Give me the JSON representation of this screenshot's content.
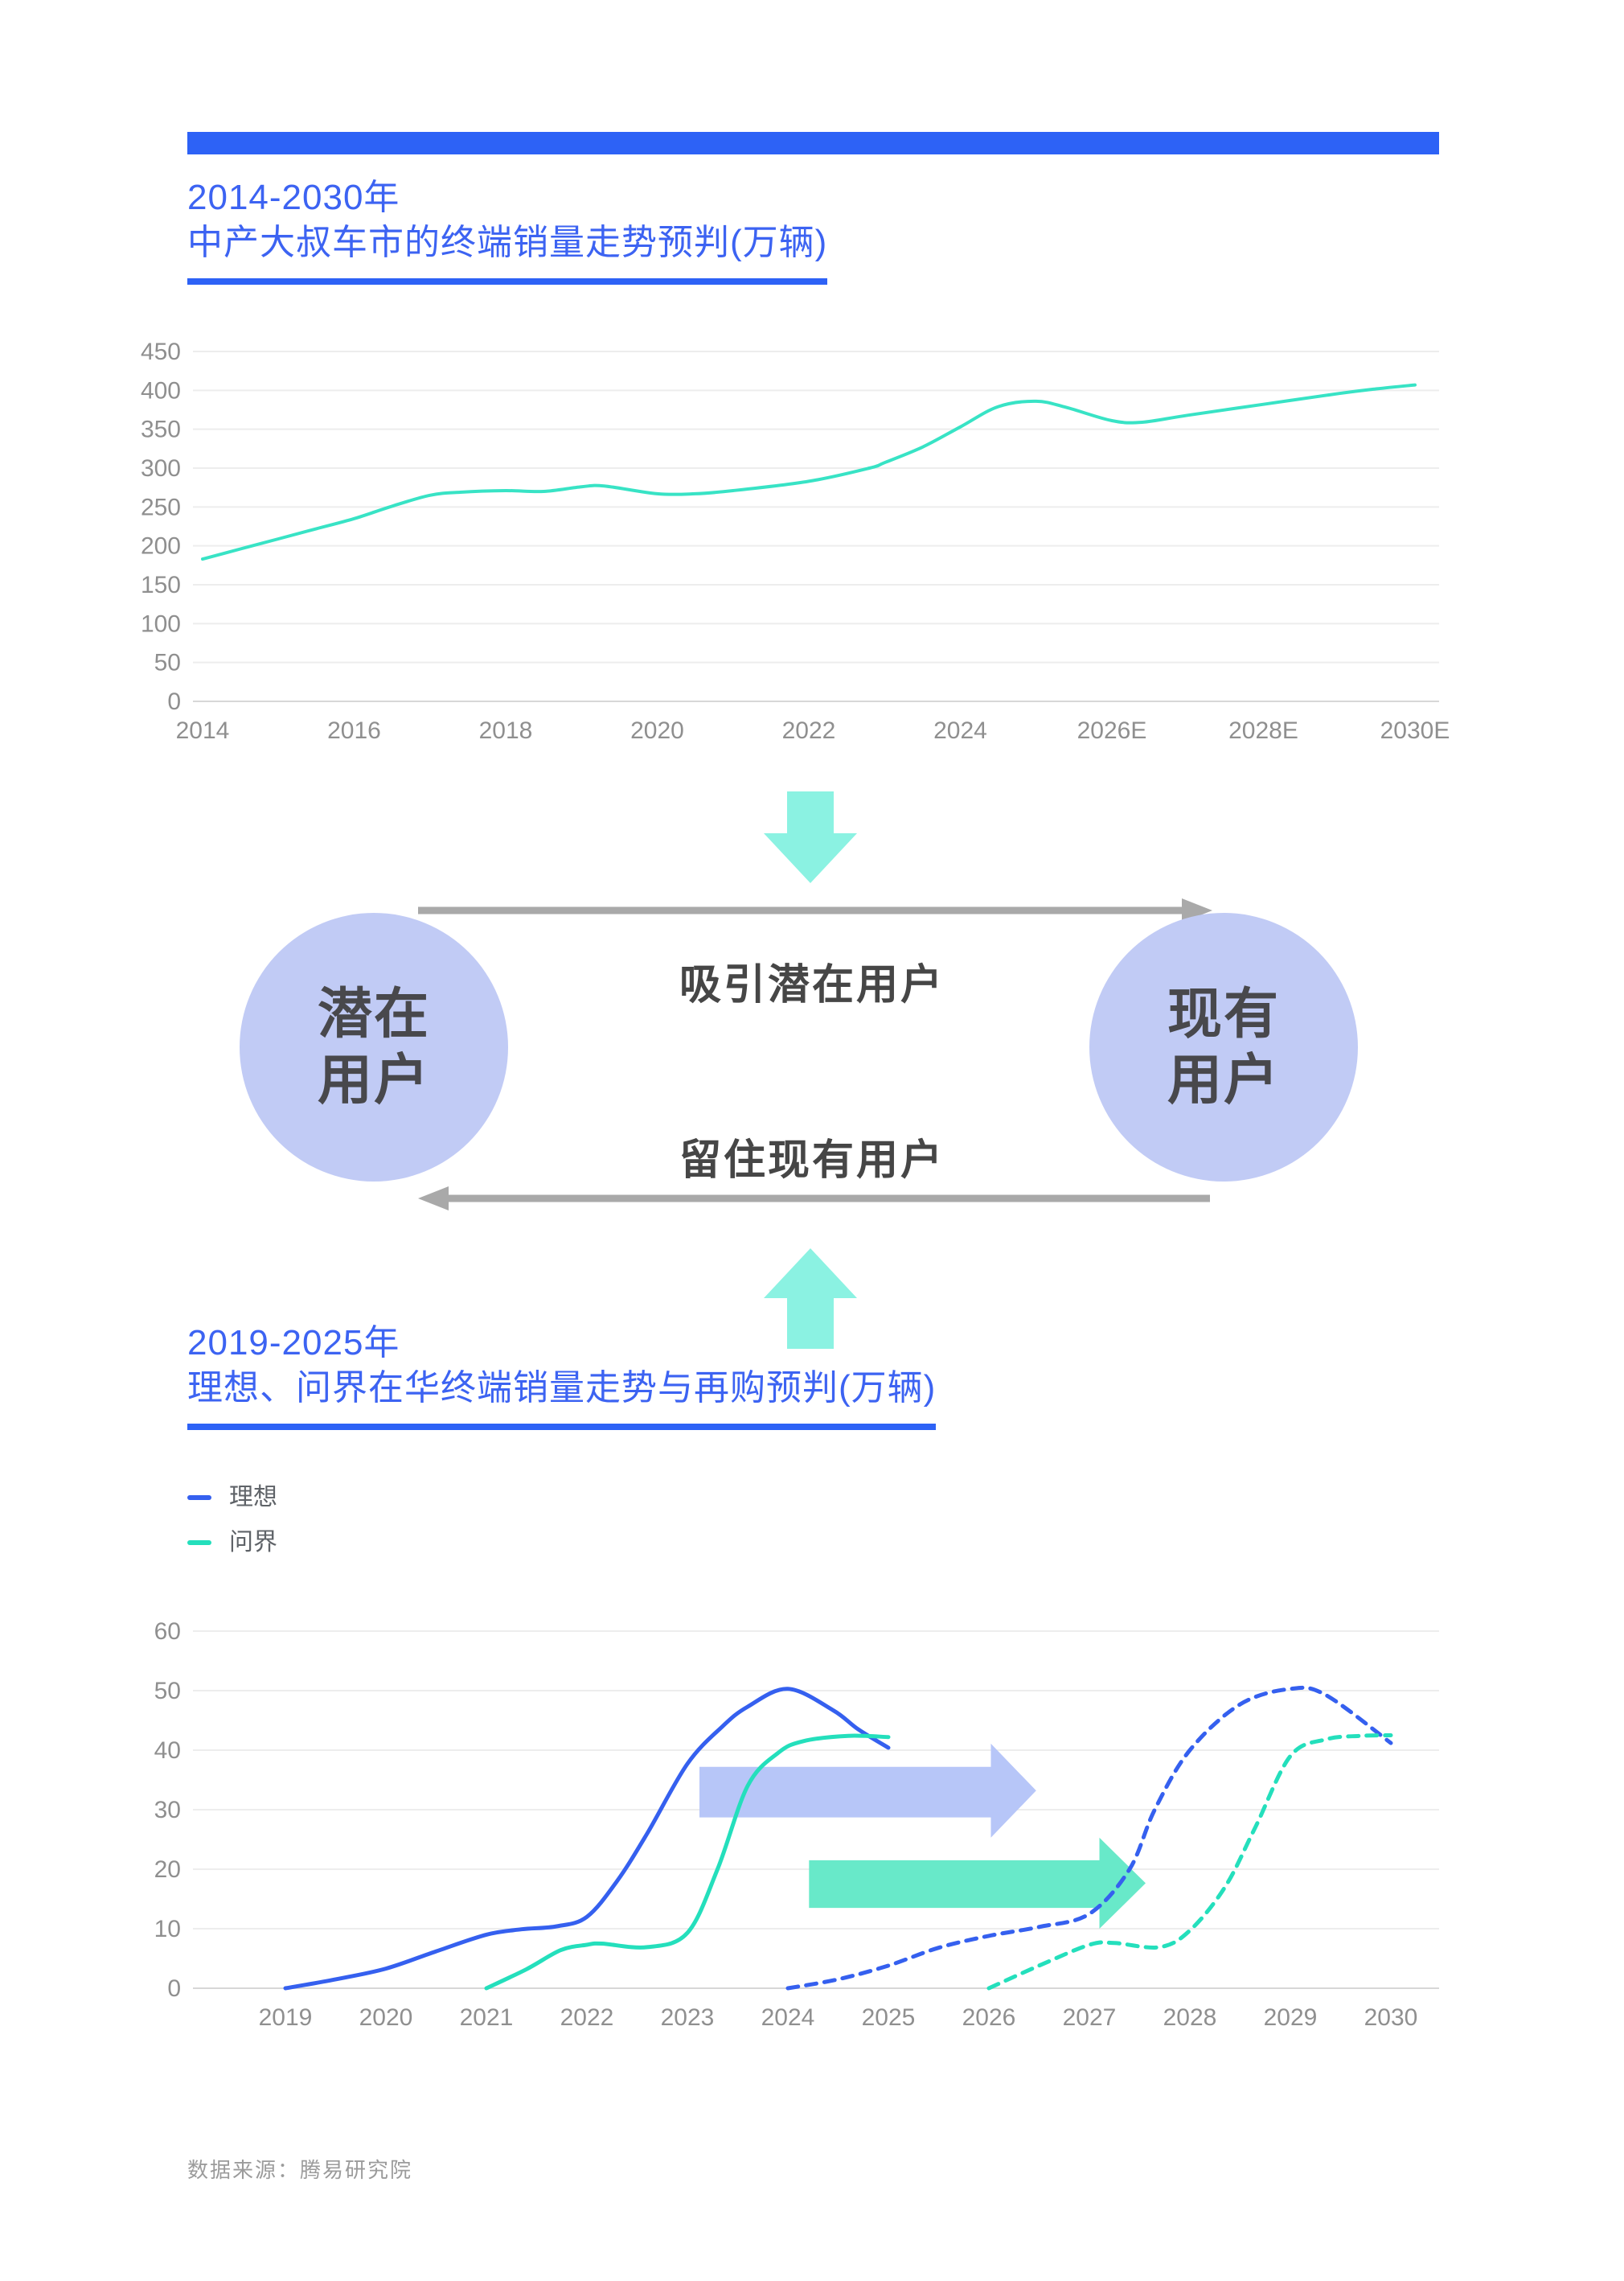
{
  "page": {
    "accent_blue": "#2d62f6",
    "title_blue": "#3c63f2",
    "axis_text_color": "#8f8f8f",
    "gridline_color": "#ededed",
    "baseline_color": "#d7d7d7"
  },
  "section1": {
    "title_line1": "2014-2030年",
    "title_line2": "中产大叔车市的终端销量走势预判(万辆)"
  },
  "section2": {
    "title_line1": "2019-2025年",
    "title_line2": "理想、问界在华终端销量走势与再购预判(万辆)"
  },
  "diagram": {
    "left_circle_line1": "潜在",
    "left_circle_line2": "用户",
    "right_circle_line1": "现有",
    "right_circle_line2": "用户",
    "top_arrow_label": "吸引潜在用户",
    "bottom_arrow_label": "留住现有用户",
    "circle_color": "#c1cbf5",
    "block_arrow_color": "#8bf2e2",
    "flow_arrow_color": "#a9a9a9"
  },
  "source": "数据来源：腾易研究院",
  "chart_data": [
    {
      "type": "line",
      "title": "2014-2030年 中产大叔车市的终端销量走势预判(万辆)",
      "xlabel": "",
      "ylabel": "",
      "ylim": [
        0,
        450
      ],
      "ystep": 50,
      "grid": true,
      "yticks": [
        "0",
        "50",
        "100",
        "150",
        "200",
        "250",
        "300",
        "350",
        "400",
        "450"
      ],
      "xticks": [
        {
          "label": "2014",
          "year": 2014
        },
        {
          "label": "2016",
          "year": 2016
        },
        {
          "label": "2018",
          "year": 2018
        },
        {
          "label": "2020",
          "year": 2020
        },
        {
          "label": "2022",
          "year": 2022
        },
        {
          "label": "2024",
          "year": 2024
        },
        {
          "label": "2026E",
          "year": 2026
        },
        {
          "label": "2028E",
          "year": 2028
        },
        {
          "label": "2030E",
          "year": 2030
        }
      ],
      "series": [
        {
          "name": "中产大叔车市终端销量",
          "color": "#38e3c5",
          "width": 4,
          "dash": null,
          "points": [
            [
              2014,
              183
            ],
            [
              2014.5,
              196
            ],
            [
              2015,
              209
            ],
            [
              2015.5,
              222
            ],
            [
              2016,
              235
            ],
            [
              2016.5,
              251
            ],
            [
              2017,
              265
            ],
            [
              2017.4,
              269
            ],
            [
              2018,
              271
            ],
            [
              2018.5,
              270
            ],
            [
              2019,
              276
            ],
            [
              2019.3,
              277
            ],
            [
              2020,
              267
            ],
            [
              2020.5,
              267
            ],
            [
              2021,
              271
            ],
            [
              2022,
              283
            ],
            [
              2022.8,
              300
            ],
            [
              2023,
              307
            ],
            [
              2023.5,
              327
            ],
            [
              2024,
              353
            ],
            [
              2024.5,
              379
            ],
            [
              2025,
              386
            ],
            [
              2025.4,
              378
            ],
            [
              2026,
              361
            ],
            [
              2026.4,
              359
            ],
            [
              2027,
              368
            ],
            [
              2028,
              382
            ],
            [
              2029,
              396
            ],
            [
              2029.5,
              402
            ],
            [
              2030,
              407
            ]
          ]
        }
      ]
    },
    {
      "type": "line",
      "title": "2019-2025年 理想、问界在华终端销量走势与再购预判(万辆)",
      "xlabel": "",
      "ylabel": "",
      "ylim": [
        0,
        60
      ],
      "ystep": 10,
      "grid": true,
      "legend_position": "top-left",
      "yticks": [
        "0",
        "10",
        "20",
        "30",
        "40",
        "50",
        "60"
      ],
      "xticks": [
        {
          "label": "2019",
          "year": 2019
        },
        {
          "label": "2020",
          "year": 2020
        },
        {
          "label": "2021",
          "year": 2021
        },
        {
          "label": "2022",
          "year": 2022
        },
        {
          "label": "2023",
          "year": 2023
        },
        {
          "label": "2024",
          "year": 2024
        },
        {
          "label": "2025",
          "year": 2025
        },
        {
          "label": "2026",
          "year": 2026
        },
        {
          "label": "2027",
          "year": 2027
        },
        {
          "label": "2028",
          "year": 2028
        },
        {
          "label": "2029",
          "year": 2029
        },
        {
          "label": "2030",
          "year": 2030
        }
      ],
      "legend": [
        {
          "label": "理想",
          "color": "#3560ef"
        },
        {
          "label": "问界",
          "color": "#24dfbc"
        }
      ],
      "series": [
        {
          "name": "理想 终端销量",
          "color": "#3560ef",
          "width": 5,
          "dash": null,
          "points": [
            [
              2019,
              0
            ],
            [
              2019.5,
              1.5
            ],
            [
              2020,
              3.3
            ],
            [
              2020.5,
              6.2
            ],
            [
              2021,
              9
            ],
            [
              2021.35,
              9.9
            ],
            [
              2021.7,
              10.4
            ],
            [
              2022,
              12
            ],
            [
              2022.3,
              18
            ],
            [
              2022.6,
              26
            ],
            [
              2023,
              37.7
            ],
            [
              2023.35,
              44
            ],
            [
              2023.6,
              47.3
            ],
            [
              2024,
              50.3
            ],
            [
              2024.45,
              46.7
            ],
            [
              2024.7,
              43.5
            ],
            [
              2025,
              40.4
            ]
          ]
        },
        {
          "name": "问界 终端销量",
          "color": "#24dfbc",
          "width": 5,
          "dash": null,
          "points": [
            [
              2021,
              0
            ],
            [
              2021.4,
              3.2
            ],
            [
              2021.74,
              6.4
            ],
            [
              2022,
              7.3
            ],
            [
              2022.15,
              7.5
            ],
            [
              2022.6,
              6.9
            ],
            [
              2023,
              9.3
            ],
            [
              2023.3,
              20
            ],
            [
              2023.6,
              34
            ],
            [
              2023.9,
              39.5
            ],
            [
              2024.15,
              41.5
            ],
            [
              2024.6,
              42.4
            ],
            [
              2025,
              42.2
            ]
          ]
        },
        {
          "name": "理想 再购预判",
          "color": "#3560ef",
          "width": 5,
          "dash": "13 10",
          "points": [
            [
              2024,
              0
            ],
            [
              2024.5,
              1.5
            ],
            [
              2025,
              3.8
            ],
            [
              2025.5,
              6.8
            ],
            [
              2026,
              8.8
            ],
            [
              2026.5,
              10.3
            ],
            [
              2027,
              12.5
            ],
            [
              2027.4,
              20
            ],
            [
              2027.65,
              30
            ],
            [
              2028,
              40
            ],
            [
              2028.5,
              47.7
            ],
            [
              2029,
              50.3
            ],
            [
              2029.35,
              49.3
            ],
            [
              2030,
              41.2
            ]
          ]
        },
        {
          "name": "问界 再购预判",
          "color": "#24dfbc",
          "width": 5,
          "dash": "13 10",
          "points": [
            [
              2026,
              0
            ],
            [
              2026.5,
              3.8
            ],
            [
              2027,
              7.3
            ],
            [
              2027.25,
              7.6
            ],
            [
              2027.7,
              6.9
            ],
            [
              2028,
              9.7
            ],
            [
              2028.35,
              17
            ],
            [
              2028.65,
              27
            ],
            [
              2029,
              39
            ],
            [
              2029.35,
              41.8
            ],
            [
              2029.7,
              42.4
            ],
            [
              2030,
              42.5
            ]
          ]
        }
      ],
      "annotations": [
        {
          "type": "block-arrow",
          "name": "lixiang-shift-arrow",
          "color": "#b7c6f8",
          "x_start": 2023.12,
          "x_head": 2026.02,
          "x_tip": 2026.47,
          "y_top": 37.2,
          "y_bottom": 28.7,
          "head_top": 41.1,
          "head_bottom": 25.3
        },
        {
          "type": "block-arrow",
          "name": "wenjie-shift-arrow",
          "color": "#68e9c9",
          "x_start": 2024.21,
          "x_head": 2027.1,
          "x_tip": 2027.56,
          "y_top": 21.5,
          "y_bottom": 13.5,
          "head_top": 25.3,
          "head_bottom": 10.0
        }
      ]
    }
  ]
}
